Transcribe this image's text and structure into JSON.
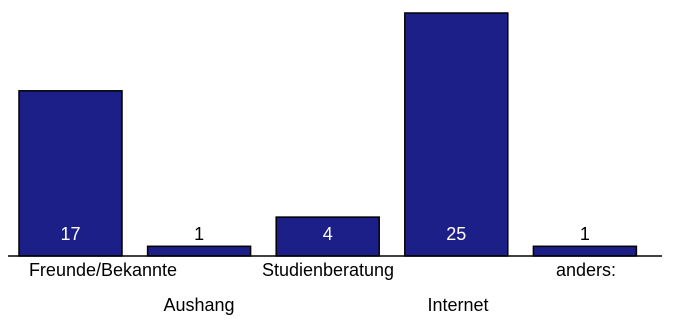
{
  "chart_data": {
    "type": "bar",
    "categories": [
      "Freunde/Bekannte",
      "Aushang",
      "Studienberatung",
      "Internet",
      "anders:"
    ],
    "values": [
      17,
      1,
      4,
      25,
      1
    ],
    "data_labels": [
      "17",
      "1",
      "4",
      "25",
      "1"
    ],
    "ylim": [
      0,
      26
    ],
    "grid": false,
    "legend": "none",
    "bar_color": "#1c1f87"
  }
}
